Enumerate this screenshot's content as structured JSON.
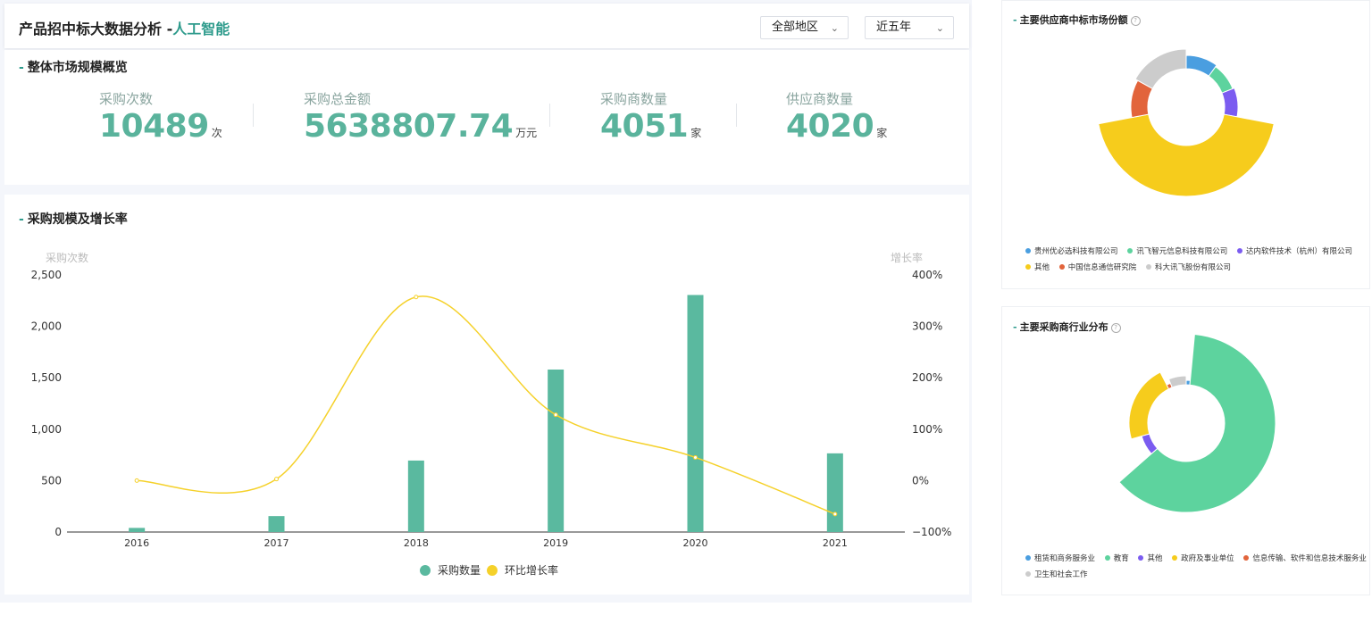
{
  "header": {
    "title": "产品招中标大数据分析 -",
    "title_highlight": "人工智能",
    "region_select": "全部地区",
    "period_select": "近五年"
  },
  "overview": {
    "title": "整体市场规模概览",
    "stats": [
      {
        "label": "采购次数",
        "value": "10489",
        "unit": "次"
      },
      {
        "label": "采购总金额",
        "value": "5638807.74",
        "unit": "万元"
      },
      {
        "label": "采购商数量",
        "value": "4051",
        "unit": "家"
      },
      {
        "label": "供应商数量",
        "value": "4020",
        "unit": "家"
      }
    ]
  },
  "trend": {
    "title": "采购规模及增长率"
  },
  "supplier_share": {
    "title": "主要供应商中标市场份额"
  },
  "buyer_industry": {
    "title": "主要采购商行业分布"
  },
  "chart_data": [
    {
      "type": "bar",
      "title": "采购规模及增长率",
      "categories": [
        "2016",
        "2017",
        "2018",
        "2019",
        "2020",
        "2021"
      ],
      "ylabel": "采购次数",
      "ylim": [
        0,
        2500
      ],
      "yticks": [
        "0",
        "500",
        "1,000",
        "1,500",
        "2,000",
        "2,500"
      ],
      "y2label": "增长率",
      "y2lim": [
        -100,
        400
      ],
      "y2ticks": [
        "−100%",
        "0%",
        "100%",
        "200%",
        "300%",
        "400%"
      ],
      "series": [
        {
          "name": "采购数量",
          "type": "bar",
          "color": "#5ab99f",
          "values": [
            40,
            155,
            695,
            1580,
            2305,
            765
          ]
        },
        {
          "name": "环比增长率",
          "type": "line",
          "color": "#f5d12a",
          "values": [
            0,
            3,
            357,
            128,
            45,
            -65
          ]
        }
      ]
    },
    {
      "type": "pie",
      "title": "主要供应商中标市场份额",
      "labels": [
        "贵州优必选科技有限公司",
        "讯飞智元信息科技有限公司",
        "达内软件技术（杭州）有限公司",
        "其他",
        "中国信息通信研究院",
        "科大讯飞股份有限公司"
      ],
      "colors": [
        "#4a9ee0",
        "#5dd39e",
        "#7b5cf0",
        "#f6cc1c",
        "#e2643b",
        "#cccccc"
      ],
      "values": [
        10,
        9,
        9,
        44,
        11,
        17
      ]
    },
    {
      "type": "pie",
      "title": "主要采购商行业分布",
      "labels": [
        "租赁和商务服务业",
        "教育",
        "其他",
        "政府及事业单位",
        "信息传输、软件和信息技术服务业",
        "卫生和社会工作"
      ],
      "colors": [
        "#4a9ee0",
        "#5dd39e",
        "#7b5cf0",
        "#f6cc1c",
        "#e2643b",
        "#cccccc"
      ],
      "values": [
        1.5,
        62,
        7,
        22,
        1.5,
        6
      ]
    }
  ]
}
